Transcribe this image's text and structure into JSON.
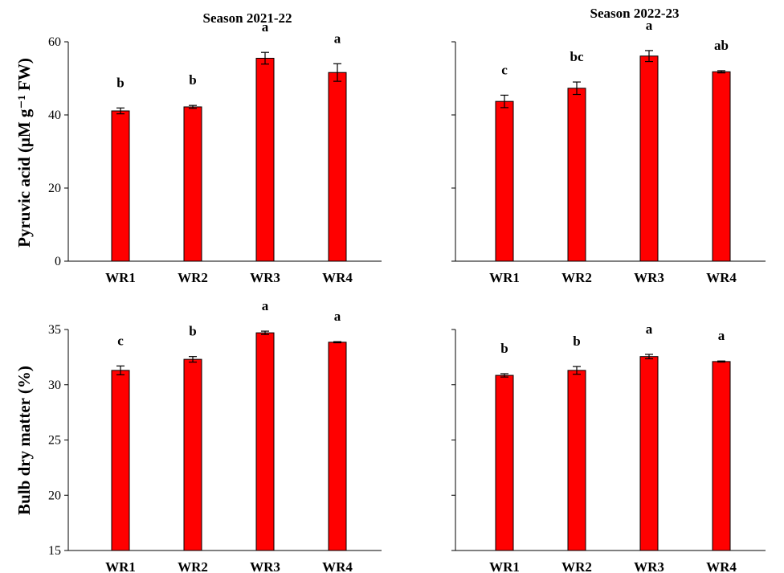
{
  "figure": {
    "row_ylabels": [
      "Pyruvic acid (μM g⁻¹ FW)",
      "Bulb dry matter (%)"
    ],
    "bar_color": "#ff0000"
  },
  "chart_data": [
    {
      "type": "bar",
      "title": "Season 2021-22",
      "ylabel": "Pyruvic acid (μM g⁻¹ FW)",
      "categories": [
        "WR1",
        "WR2",
        "WR3",
        "WR4"
      ],
      "values": [
        41.1,
        42.2,
        55.5,
        51.6
      ],
      "errors": [
        0.8,
        0.4,
        1.6,
        2.4
      ],
      "significance": [
        "b",
        "b",
        "a",
        "a"
      ],
      "ylim": [
        0,
        60
      ],
      "yticks": [
        0,
        20,
        40,
        60
      ],
      "show_tick_labels": true
    },
    {
      "type": "bar",
      "title": "Season 2022-23",
      "ylabel": "",
      "categories": [
        "WR1",
        "WR2",
        "WR3",
        "WR4"
      ],
      "values": [
        43.7,
        47.3,
        56.1,
        51.8
      ],
      "errors": [
        1.7,
        1.7,
        1.5,
        0.3
      ],
      "significance": [
        "c",
        "bc",
        "a",
        "ab"
      ],
      "ylim": [
        0,
        60
      ],
      "yticks": [
        0,
        20,
        40,
        60
      ],
      "show_tick_labels": false
    },
    {
      "type": "bar",
      "title": "",
      "ylabel": "Bulb dry matter (%)",
      "categories": [
        "WR1",
        "WR2",
        "WR3",
        "WR4"
      ],
      "values": [
        31.3,
        32.3,
        34.7,
        33.85
      ],
      "errors": [
        0.4,
        0.25,
        0.15,
        0.05
      ],
      "significance": [
        "c",
        "b",
        "a",
        "a"
      ],
      "ylim": [
        15,
        35
      ],
      "yticks": [
        15,
        20,
        25,
        30,
        35
      ],
      "show_tick_labels": true
    },
    {
      "type": "bar",
      "title": "",
      "ylabel": "",
      "categories": [
        "WR1",
        "WR2",
        "WR3",
        "WR4"
      ],
      "values": [
        30.85,
        31.3,
        32.55,
        32.1
      ],
      "errors": [
        0.15,
        0.35,
        0.2,
        0.05
      ],
      "significance": [
        "b",
        "b",
        "a",
        "a"
      ],
      "ylim": [
        15,
        35
      ],
      "yticks": [
        15,
        20,
        25,
        30,
        35
      ],
      "show_tick_labels": false
    }
  ]
}
